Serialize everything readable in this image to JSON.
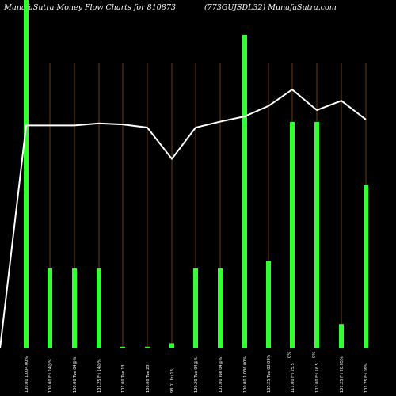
{
  "header": {
    "left": "MunafaSutra  Money Flow  Charts for 810873",
    "right": "(773GUJSDL32) MunafaSutra.com"
  },
  "colors": {
    "background": "#000000",
    "bar": "#33ff33",
    "line": "#ffffff",
    "gridline": "#b5651d",
    "text": "#ffffff"
  },
  "chart_data": {
    "type": "bar",
    "categories": [
      "100.00 1,004.00%",
      "100.00 Fri 24@%",
      "100.00 Tue 04@%",
      "101.25 Fri 14@%",
      "101.00 Tue 13,",
      "100.00 Tue 23,",
      "98.01 Fri 18,",
      "100.20 Tue 04@%",
      "101.00 Tue 04@%",
      "100.00 1,036.00%",
      "105.25 Tue 03.09%",
      "111.00 Fri 25.5",
      "103.00 Fri 16.5",
      "107.25 Fri 20.05%",
      "101.75 Fri 09%"
    ],
    "series": [
      {
        "type": "bar",
        "values": [
          100,
          23,
          23,
          23,
          0.5,
          0.5,
          1.5,
          23,
          23,
          90,
          25,
          65,
          65,
          7,
          47
        ]
      },
      {
        "type": "line",
        "values": [
          64,
          64,
          64,
          64.6,
          64.3,
          63.4,
          54.4,
          63.4,
          65.1,
          66.6,
          69.6,
          74.3,
          68.4,
          71.1,
          65.7
        ]
      }
    ],
    "bar_labels": [
      "",
      "",
      "",
      "",
      "",
      "",
      "",
      "",
      "",
      "",
      "",
      "0%",
      "0%",
      "",
      ""
    ],
    "ylim": [
      0,
      100
    ],
    "grid": true
  }
}
